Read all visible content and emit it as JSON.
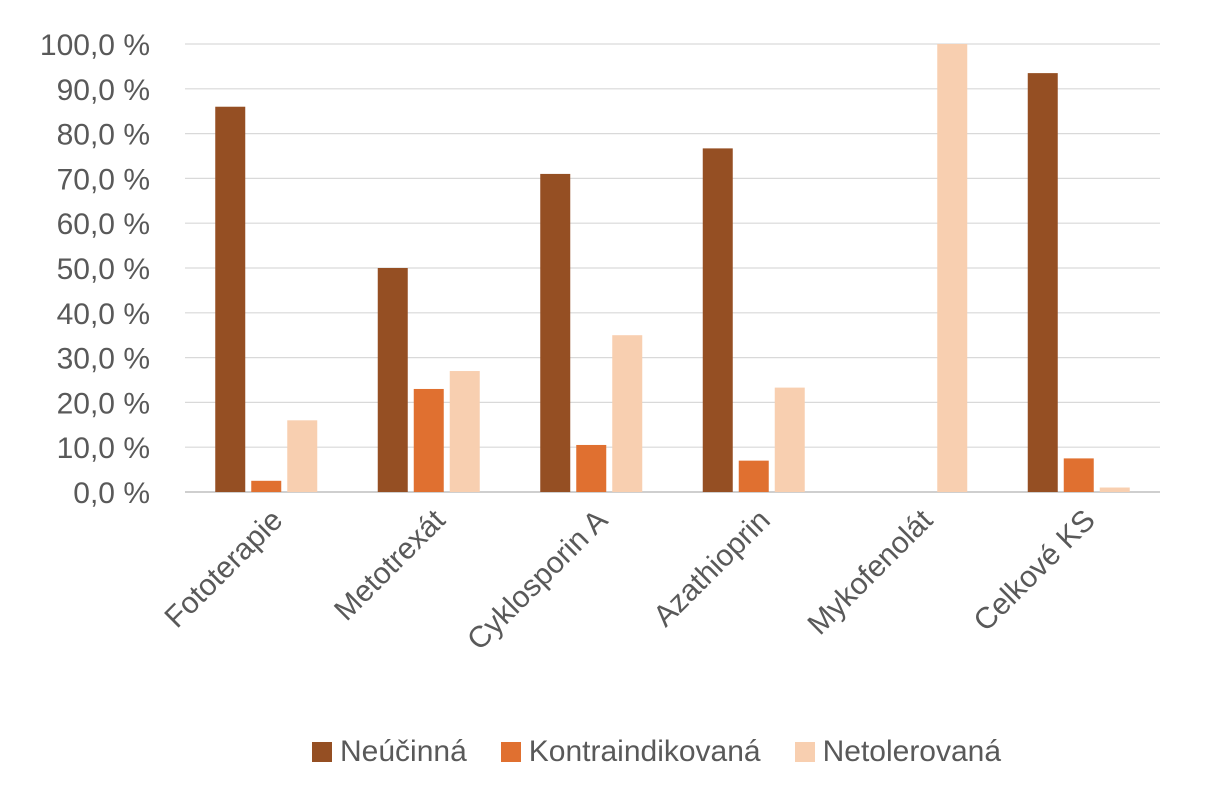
{
  "chart_data": {
    "type": "bar",
    "title": "",
    "xlabel": "",
    "ylabel": "",
    "categories": [
      "Fototerapie",
      "Metotrexát",
      "Cyklosporin A",
      "Azathioprin",
      "Mykofenolát",
      "Celkové KS"
    ],
    "series": [
      {
        "name": "Neúčinná",
        "color": "#954F23",
        "values": [
          86.0,
          50.0,
          71.0,
          76.7,
          0,
          93.5
        ]
      },
      {
        "name": "Kontraindikovaná",
        "color": "#E07030",
        "values": [
          2.5,
          23.0,
          10.5,
          7.0,
          0,
          7.5
        ]
      },
      {
        "name": "Netolerovaná",
        "color": "#F8CFB0",
        "values": [
          16.0,
          27.0,
          35.0,
          23.3,
          100.0,
          1.0
        ]
      }
    ],
    "ylim": [
      0,
      100
    ],
    "yticks": [
      "0,0 %",
      "10,0 %",
      "20,0 %",
      "30,0 %",
      "40,0 %",
      "50,0 %",
      "60,0 %",
      "70,0 %",
      "80,0 %",
      "90,0 %",
      "100,0 %"
    ],
    "grid": true,
    "legend_position": "bottom"
  }
}
